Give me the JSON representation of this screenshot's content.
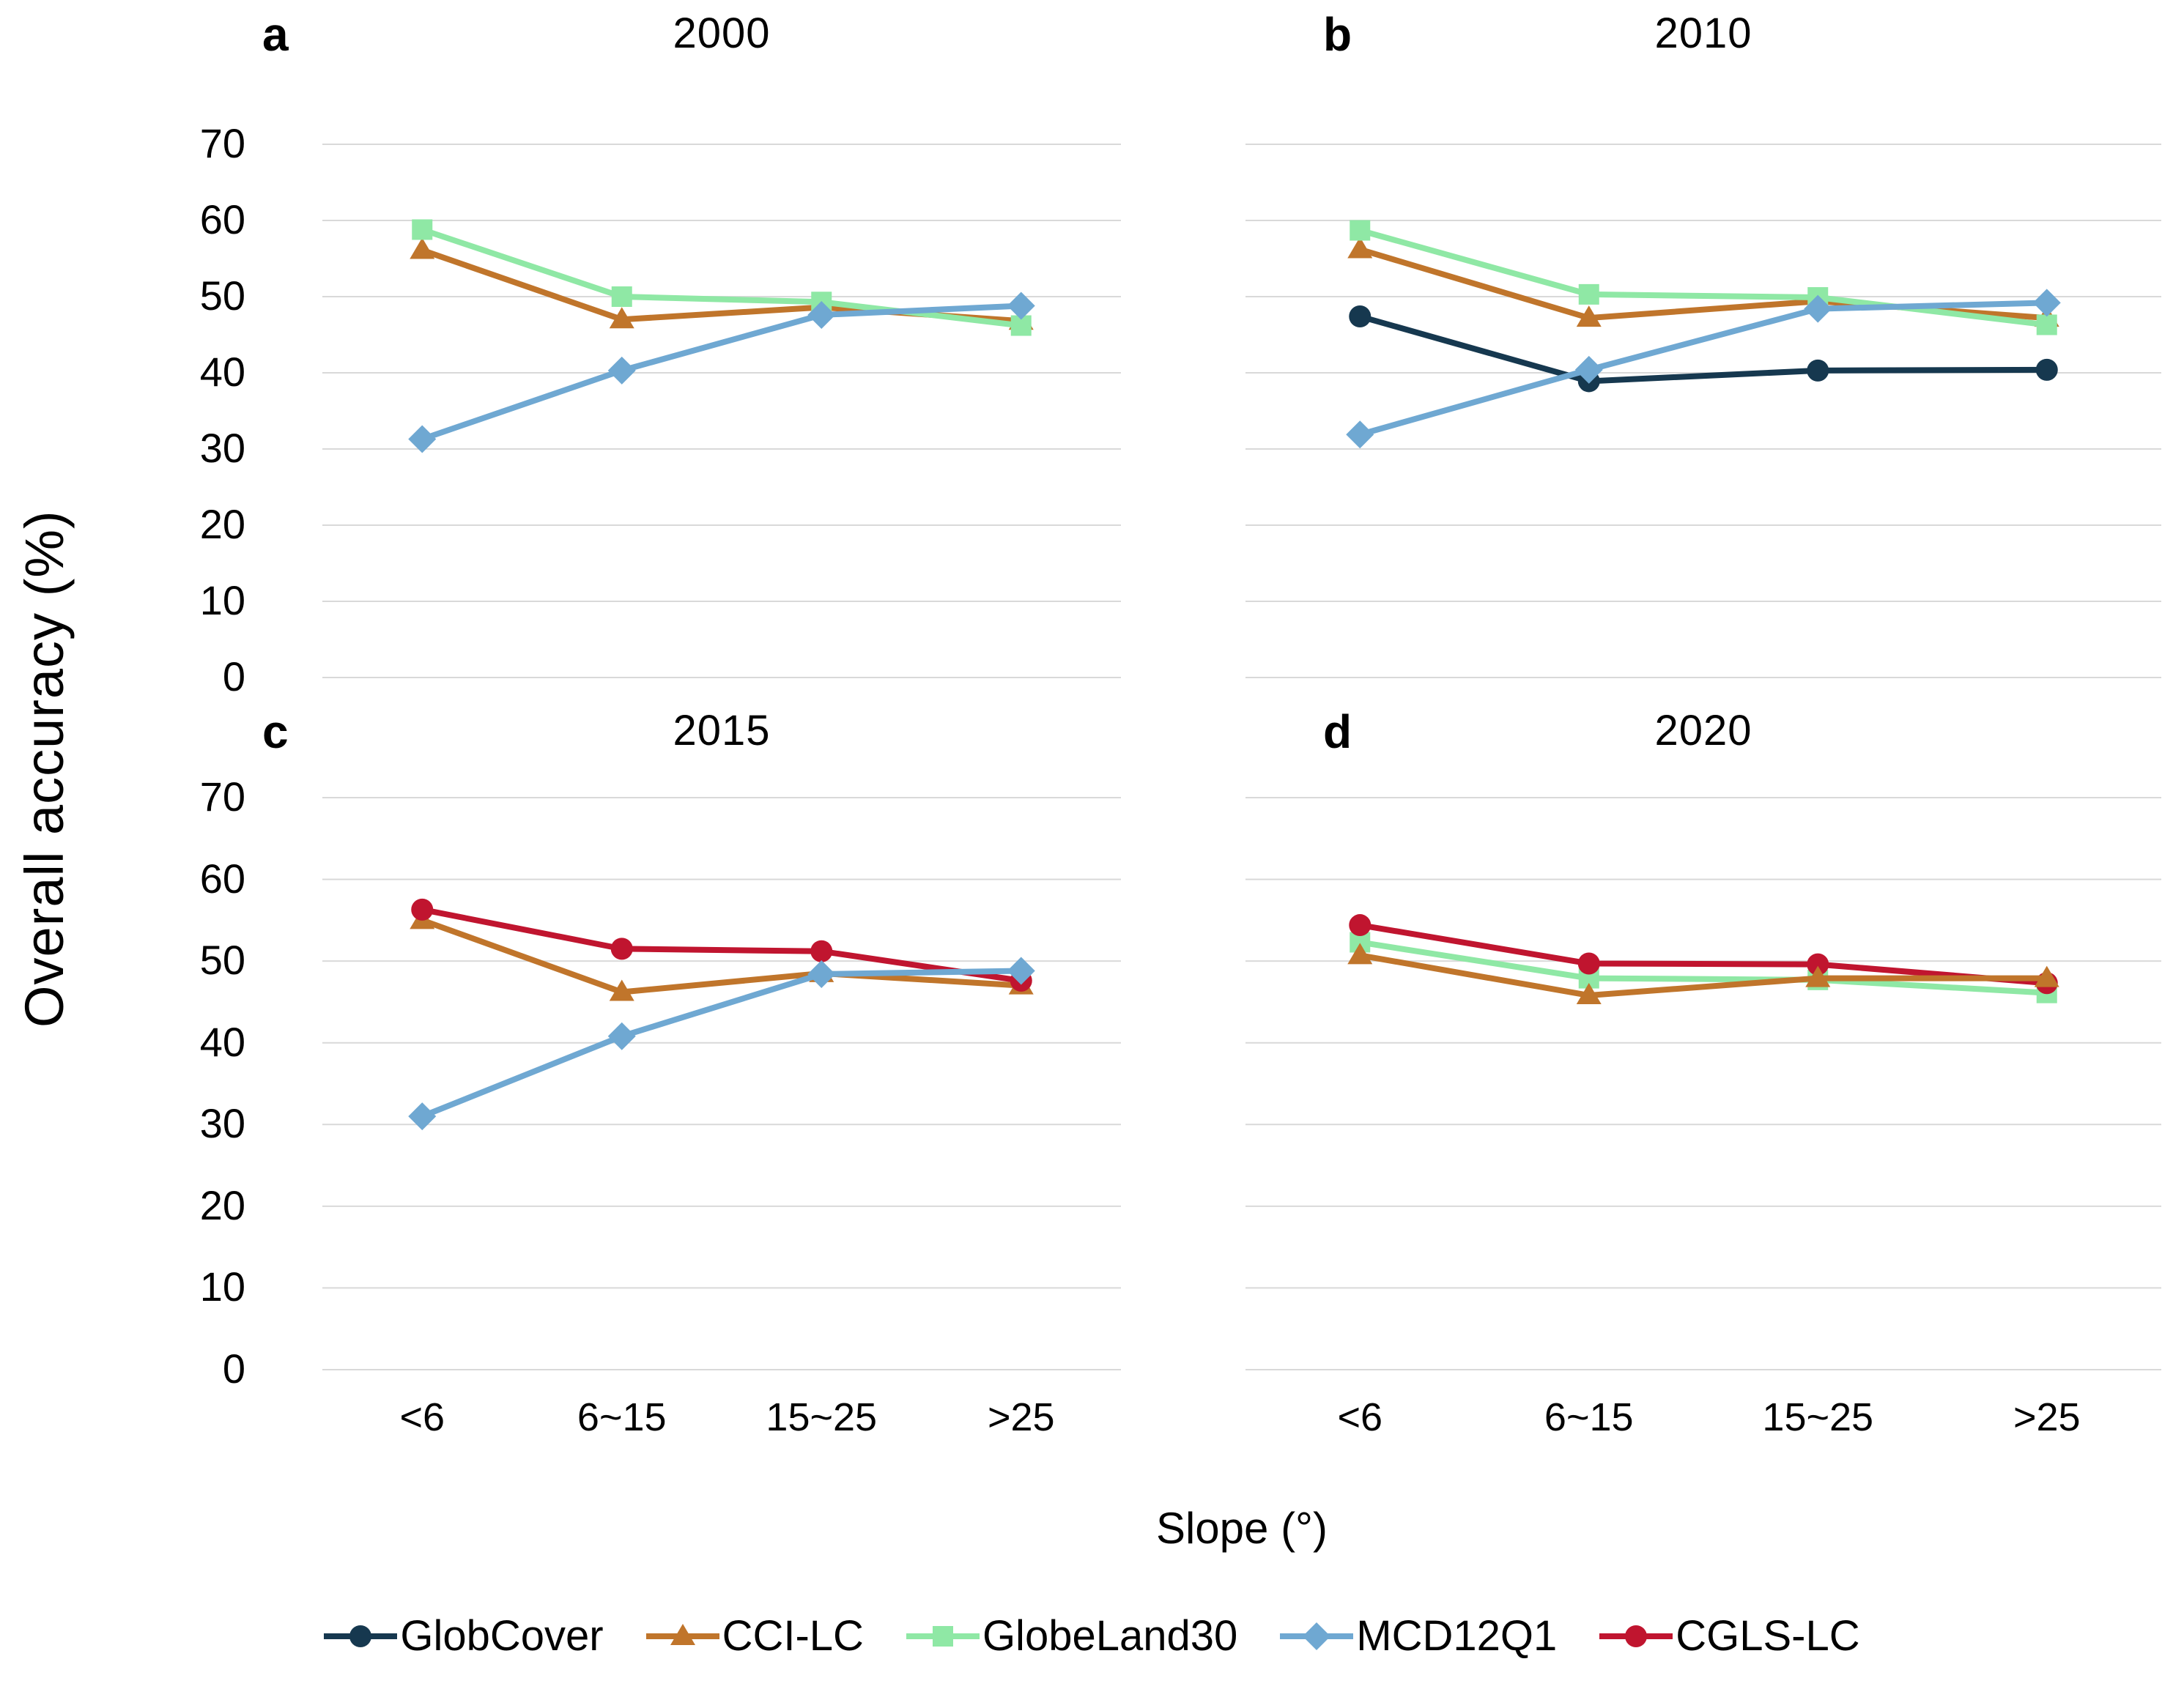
{
  "figure": {
    "y_axis_label": "Overall accuracy (%)",
    "x_axis_label": "Slope  (°)",
    "y_ticks": [
      "70",
      "60",
      "50",
      "40",
      "30",
      "20",
      "10",
      "0"
    ],
    "x_categories": [
      "<6",
      "6~15",
      "15~25",
      ">25"
    ],
    "grid_color": "#D9D9D9",
    "text_color": "#000000",
    "background": "#FFFFFF"
  },
  "legend": {
    "items": [
      {
        "label": "GlobCover",
        "color": "#16384F",
        "marker": "circle"
      },
      {
        "label": "CCI-LC",
        "color": "#C0752B",
        "marker": "triangle"
      },
      {
        "label": "GlobeLand30",
        "color": "#8FE8A5",
        "marker": "square"
      },
      {
        "label": "MCD12Q1",
        "color": "#6FA8D2",
        "marker": "diamond"
      },
      {
        "label": "CGLS-LC",
        "color": "#C0152F",
        "marker": "circle"
      }
    ]
  },
  "chart_data": [
    {
      "panel": "a",
      "type": "line",
      "title": "2000",
      "categories": [
        "<6",
        "6~15",
        "15~25",
        ">25"
      ],
      "xlabel": "Slope (°)",
      "ylabel": "Overall accuracy (%)",
      "ylim": [
        0,
        70
      ],
      "grid": true,
      "legend_position": "bottom",
      "series": [
        {
          "name": "CCI-LC",
          "marker": "triangle",
          "color": "#C0752B",
          "values": [
            56.1,
            47.0,
            48.6,
            46.8
          ]
        },
        {
          "name": "GlobeLand30",
          "marker": "square",
          "color": "#8FE8A5",
          "values": [
            58.8,
            50.0,
            49.3,
            46.2
          ]
        },
        {
          "name": "MCD12Q1",
          "marker": "diamond",
          "color": "#6FA8D2",
          "values": [
            31.3,
            40.3,
            47.6,
            48.8
          ]
        }
      ]
    },
    {
      "panel": "b",
      "type": "line",
      "title": "2010",
      "categories": [
        "<6",
        "6~15",
        "15~25",
        ">25"
      ],
      "xlabel": "Slope (°)",
      "ylabel": "Overall accuracy (%)",
      "ylim": [
        0,
        70
      ],
      "grid": true,
      "legend_position": "bottom",
      "series": [
        {
          "name": "GlobCover",
          "marker": "circle",
          "color": "#16384F",
          "values": [
            47.4,
            38.9,
            40.3,
            40.4
          ]
        },
        {
          "name": "CCI-LC",
          "marker": "triangle",
          "color": "#C0752B",
          "values": [
            56.2,
            47.2,
            49.4,
            47.2
          ]
        },
        {
          "name": "GlobeLand30",
          "marker": "square",
          "color": "#8FE8A5",
          "values": [
            58.7,
            50.3,
            49.9,
            46.3
          ]
        },
        {
          "name": "MCD12Q1",
          "marker": "diamond",
          "color": "#6FA8D2",
          "values": [
            31.9,
            40.4,
            48.4,
            49.2
          ]
        }
      ]
    },
    {
      "panel": "c",
      "type": "line",
      "title": "2015",
      "categories": [
        "<6",
        "6~15",
        "15~25",
        ">25"
      ],
      "xlabel": "Slope (°)",
      "ylabel": "Overall accuracy (%)",
      "ylim": [
        0,
        70
      ],
      "grid": true,
      "legend_position": "bottom",
      "series": [
        {
          "name": "CCI-LC",
          "marker": "triangle",
          "color": "#C0752B",
          "values": [
            55.0,
            46.2,
            48.5,
            47.0
          ]
        },
        {
          "name": "CGLS-LC",
          "marker": "circle",
          "color": "#C0152F",
          "values": [
            56.3,
            51.5,
            51.2,
            47.6
          ]
        },
        {
          "name": "MCD12Q1",
          "marker": "diamond",
          "color": "#6FA8D2",
          "values": [
            31.0,
            40.8,
            48.4,
            48.8
          ]
        }
      ]
    },
    {
      "panel": "d",
      "type": "line",
      "title": "2020",
      "categories": [
        "<6",
        "6~15",
        "15~25",
        ">25"
      ],
      "xlabel": "Slope (°)",
      "ylabel": "Overall accuracy (%)",
      "ylim": [
        0,
        70
      ],
      "grid": true,
      "legend_position": "bottom",
      "series": [
        {
          "name": "GlobeLand30",
          "marker": "square",
          "color": "#8FE8A5",
          "values": [
            52.3,
            47.9,
            47.7,
            46.1
          ]
        },
        {
          "name": "CGLS-LC",
          "marker": "circle",
          "color": "#C0152F",
          "values": [
            54.4,
            49.7,
            49.6,
            47.3
          ]
        },
        {
          "name": "CCI-LC",
          "marker": "triangle",
          "color": "#C0752B",
          "values": [
            50.7,
            45.8,
            47.9,
            47.9
          ]
        }
      ]
    }
  ]
}
